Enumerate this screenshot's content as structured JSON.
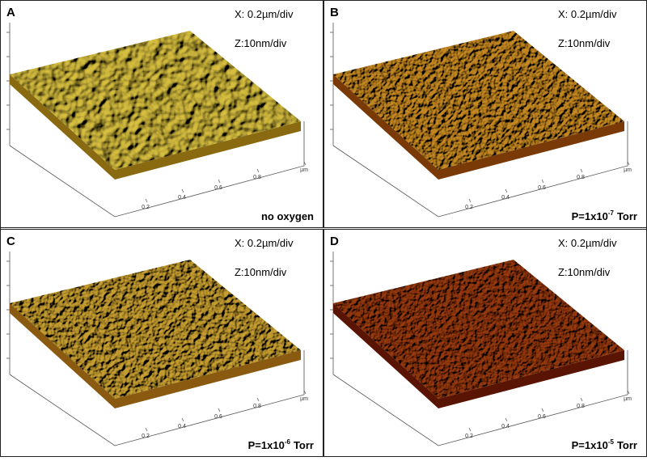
{
  "panels": [
    {
      "letter": "A",
      "x_scale": "X: 0.2µm/div",
      "z_scale": "Z:10nm/div",
      "condition": {
        "text": "no oxygen"
      },
      "axis_ticks": [
        "0.2",
        "0.4",
        "0.6",
        "0.8",
        "µm"
      ]
    },
    {
      "letter": "B",
      "x_scale": "X: 0.2µm/div",
      "z_scale": "Z:10nm/div",
      "condition": {
        "prefix": "P=1x10",
        "exponent": "-7",
        "suffix": "Torr"
      },
      "axis_ticks": [
        "0.2",
        "0.4",
        "0.6",
        "0.8",
        "µm"
      ]
    },
    {
      "letter": "C",
      "x_scale": "X: 0.2µm/div",
      "z_scale": "Z:10nm/div",
      "condition": {
        "prefix": "P=1x10",
        "exponent": "-6",
        "suffix": "Torr"
      },
      "axis_ticks": [
        "0.2",
        "0.4",
        "0.6",
        "0.8",
        "µm"
      ]
    },
    {
      "letter": "D",
      "x_scale": "X: 0.2µm/div",
      "z_scale": "Z:10nm/div",
      "condition": {
        "prefix": "P=1x10",
        "exponent": "-5",
        "suffix": "Torr"
      },
      "axis_ticks": [
        "0.2",
        "0.4",
        "0.6",
        "0.8",
        "µm"
      ]
    }
  ]
}
